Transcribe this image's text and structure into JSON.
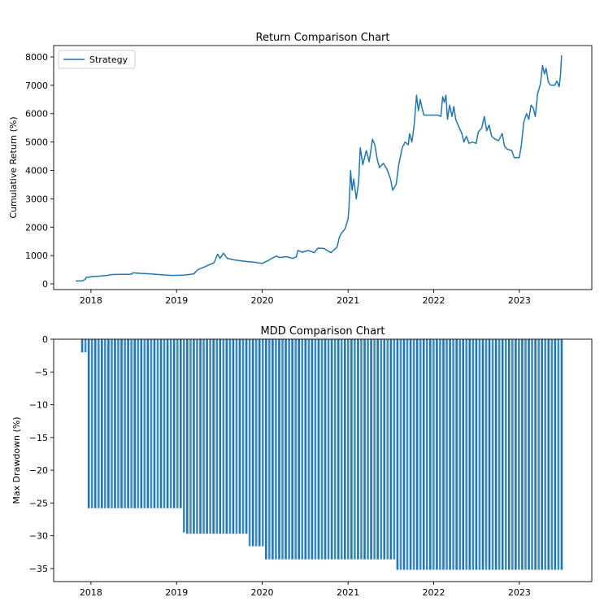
{
  "colors": {
    "strategy": "#1f77b4",
    "axis": "#000000",
    "background": "#ffffff"
  },
  "chart_data": [
    {
      "type": "line",
      "title": "Return Comparison Chart",
      "xlabel": "",
      "ylabel": "Cumulative Return (%)",
      "xlim": [
        "2017-07-26",
        "2023-11-06"
      ],
      "ylim": [
        -200,
        8400
      ],
      "xticks": [
        {
          "date": "2018-01-01",
          "label": "2018"
        },
        {
          "date": "2019-01-01",
          "label": "2019"
        },
        {
          "date": "2020-01-01",
          "label": "2020"
        },
        {
          "date": "2021-01-01",
          "label": "2021"
        },
        {
          "date": "2022-01-01",
          "label": "2022"
        },
        {
          "date": "2023-01-01",
          "label": "2023"
        }
      ],
      "yticks": [
        0,
        1000,
        2000,
        3000,
        4000,
        5000,
        6000,
        7000,
        8000
      ],
      "grid": false,
      "legend": {
        "placement": "top-left",
        "entries": [
          "Strategy"
        ]
      },
      "series": [
        {
          "name": "Strategy",
          "points": [
            [
              "2017-10-28",
              100
            ],
            [
              "2017-11-25",
              110
            ],
            [
              "2017-12-08",
              160
            ],
            [
              "2017-12-12",
              240
            ],
            [
              "2017-12-20",
              230
            ],
            [
              "2018-01-05",
              260
            ],
            [
              "2018-02-01",
              270
            ],
            [
              "2018-03-10",
              300
            ],
            [
              "2018-04-01",
              330
            ],
            [
              "2018-05-15",
              335
            ],
            [
              "2018-06-20",
              340
            ],
            [
              "2018-07-01",
              390
            ],
            [
              "2018-08-01",
              370
            ],
            [
              "2018-09-15",
              350
            ],
            [
              "2018-11-01",
              320
            ],
            [
              "2018-12-15",
              300
            ],
            [
              "2019-02-01",
              310
            ],
            [
              "2019-03-15",
              350
            ],
            [
              "2019-04-01",
              500
            ],
            [
              "2019-05-01",
              600
            ],
            [
              "2019-06-10",
              750
            ],
            [
              "2019-06-25",
              1050
            ],
            [
              "2019-07-05",
              900
            ],
            [
              "2019-07-20",
              1080
            ],
            [
              "2019-08-05",
              900
            ],
            [
              "2019-09-01",
              850
            ],
            [
              "2019-10-15",
              800
            ],
            [
              "2019-12-01",
              760
            ],
            [
              "2020-01-01",
              720
            ],
            [
              "2020-02-01",
              850
            ],
            [
              "2020-03-01",
              980
            ],
            [
              "2020-03-15",
              930
            ],
            [
              "2020-04-15",
              960
            ],
            [
              "2020-05-10",
              900
            ],
            [
              "2020-05-25",
              950
            ],
            [
              "2020-06-01",
              1180
            ],
            [
              "2020-06-20",
              1120
            ],
            [
              "2020-07-15",
              1180
            ],
            [
              "2020-08-10",
              1100
            ],
            [
              "2020-08-25",
              1260
            ],
            [
              "2020-09-20",
              1250
            ],
            [
              "2020-10-20",
              1100
            ],
            [
              "2020-11-15",
              1300
            ],
            [
              "2020-11-25",
              1650
            ],
            [
              "2020-12-05",
              1800
            ],
            [
              "2020-12-20",
              1950
            ],
            [
              "2021-01-01",
              2300
            ],
            [
              "2021-01-05",
              2700
            ],
            [
              "2021-01-12",
              4000
            ],
            [
              "2021-01-18",
              3300
            ],
            [
              "2021-01-25",
              3700
            ],
            [
              "2021-02-05",
              3000
            ],
            [
              "2021-02-15",
              3600
            ],
            [
              "2021-02-22",
              4800
            ],
            [
              "2021-03-05",
              4200
            ],
            [
              "2021-03-20",
              4700
            ],
            [
              "2021-04-01",
              4300
            ],
            [
              "2021-04-15",
              5100
            ],
            [
              "2021-04-25",
              4900
            ],
            [
              "2021-05-05",
              4400
            ],
            [
              "2021-05-15",
              4100
            ],
            [
              "2021-06-01",
              4250
            ],
            [
              "2021-06-15",
              4050
            ],
            [
              "2021-07-01",
              3700
            ],
            [
              "2021-07-10",
              3300
            ],
            [
              "2021-07-25",
              3500
            ],
            [
              "2021-08-05",
              4200
            ],
            [
              "2021-08-20",
              4800
            ],
            [
              "2021-09-01",
              5000
            ],
            [
              "2021-09-15",
              4900
            ],
            [
              "2021-09-20",
              5300
            ],
            [
              "2021-09-30",
              5000
            ],
            [
              "2021-10-10",
              5600
            ],
            [
              "2021-10-20",
              6650
            ],
            [
              "2021-10-28",
              6100
            ],
            [
              "2021-11-05",
              6500
            ],
            [
              "2021-11-12",
              6200
            ],
            [
              "2021-11-20",
              5950
            ],
            [
              "2021-12-15",
              5950
            ],
            [
              "2022-01-20",
              5950
            ],
            [
              "2022-02-01",
              5900
            ],
            [
              "2022-02-08",
              6600
            ],
            [
              "2022-02-15",
              6400
            ],
            [
              "2022-02-22",
              6650
            ],
            [
              "2022-03-01",
              5800
            ],
            [
              "2022-03-10",
              6300
            ],
            [
              "2022-03-20",
              5900
            ],
            [
              "2022-03-28",
              6250
            ],
            [
              "2022-04-05",
              5800
            ],
            [
              "2022-04-20",
              5500
            ],
            [
              "2022-05-01",
              5300
            ],
            [
              "2022-05-10",
              5000
            ],
            [
              "2022-05-20",
              5200
            ],
            [
              "2022-06-01",
              4950
            ],
            [
              "2022-06-15",
              5000
            ],
            [
              "2022-07-01",
              4950
            ],
            [
              "2022-07-10",
              5350
            ],
            [
              "2022-07-25",
              5500
            ],
            [
              "2022-08-05",
              5900
            ],
            [
              "2022-08-15",
              5400
            ],
            [
              "2022-08-25",
              5600
            ],
            [
              "2022-09-05",
              5200
            ],
            [
              "2022-09-20",
              5100
            ],
            [
              "2022-10-05",
              5050
            ],
            [
              "2022-10-20",
              5300
            ],
            [
              "2022-10-30",
              4850
            ],
            [
              "2022-11-10",
              4750
            ],
            [
              "2022-11-30",
              4700
            ],
            [
              "2022-12-10",
              4450
            ],
            [
              "2023-01-01",
              4450
            ],
            [
              "2023-01-10",
              4900
            ],
            [
              "2023-01-20",
              5700
            ],
            [
              "2023-02-01",
              6000
            ],
            [
              "2023-02-10",
              5800
            ],
            [
              "2023-02-20",
              6300
            ],
            [
              "2023-03-01",
              6200
            ],
            [
              "2023-03-10",
              5900
            ],
            [
              "2023-03-20",
              6700
            ],
            [
              "2023-04-01",
              7050
            ],
            [
              "2023-04-10",
              7700
            ],
            [
              "2023-04-18",
              7400
            ],
            [
              "2023-04-25",
              7600
            ],
            [
              "2023-05-05",
              7100
            ],
            [
              "2023-05-15",
              7000
            ],
            [
              "2023-06-01",
              7000
            ],
            [
              "2023-06-10",
              7150
            ],
            [
              "2023-06-20",
              6950
            ],
            [
              "2023-06-26",
              7400
            ],
            [
              "2023-06-30",
              8050
            ]
          ]
        }
      ]
    },
    {
      "type": "bar",
      "title": "MDD Comparison Chart",
      "xlabel": "",
      "ylabel": "Max Drawdown (%)",
      "xlim": [
        "2017-07-26",
        "2023-11-06"
      ],
      "ylim": [
        -37,
        0
      ],
      "xticks": [
        {
          "date": "2018-01-01",
          "label": "2018"
        },
        {
          "date": "2019-01-01",
          "label": "2019"
        },
        {
          "date": "2020-01-01",
          "label": "2020"
        },
        {
          "date": "2021-01-01",
          "label": "2021"
        },
        {
          "date": "2022-01-01",
          "label": "2022"
        },
        {
          "date": "2023-01-01",
          "label": "2023"
        }
      ],
      "yticks": [
        0,
        -5,
        -10,
        -15,
        -20,
        -25,
        -30,
        -35
      ],
      "grid": false,
      "series": [
        {
          "name": "",
          "steps": [
            [
              "2017-11-20",
              -2
            ],
            [
              "2017-12-05",
              -7.8
            ],
            [
              "2017-12-12",
              -15
            ],
            [
              "2017-12-18",
              -25.8
            ],
            [
              "2019-01-20",
              -29.5
            ],
            [
              "2019-02-10",
              -29.7
            ],
            [
              "2019-10-30",
              -31.6
            ],
            [
              "2020-01-01",
              -32.5
            ],
            [
              "2020-01-10",
              -33.6
            ],
            [
              "2021-07-20",
              -35.2
            ]
          ],
          "end": "2023-07-01"
        }
      ]
    }
  ]
}
